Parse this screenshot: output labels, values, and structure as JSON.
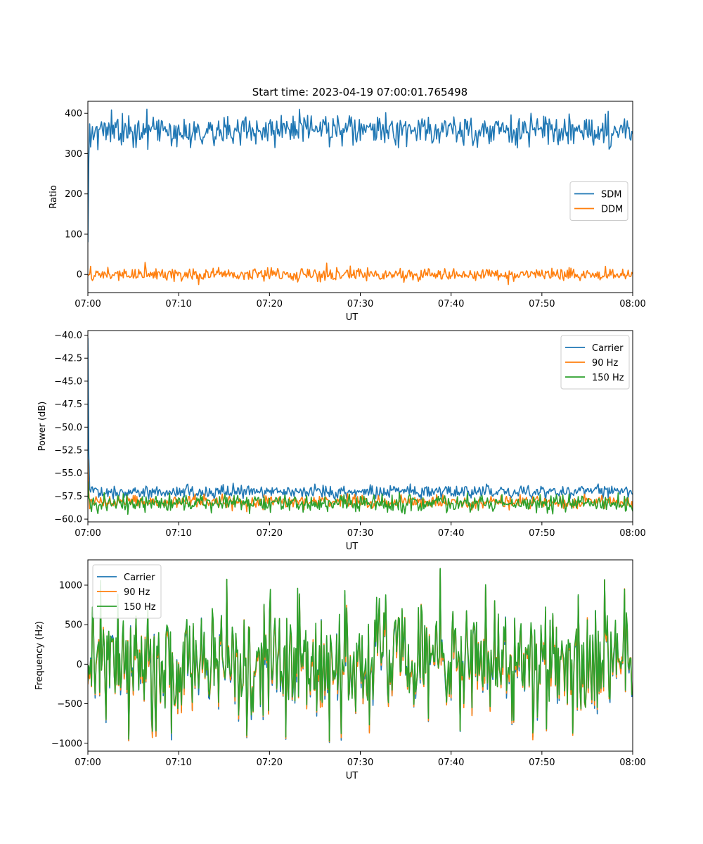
{
  "figure": {
    "title": "Start time: 2023-04-19 07:00:01.765498"
  },
  "chart_data": [
    {
      "type": "line",
      "xlabel": "UT",
      "ylabel": "Ratio",
      "xlim": [
        "07:00",
        "08:00"
      ],
      "ylim": [
        -45,
        430
      ],
      "x_ticks": [
        "07:00",
        "07:10",
        "07:20",
        "07:30",
        "07:40",
        "07:50",
        "08:00"
      ],
      "y_ticks": [
        0,
        100,
        200,
        300,
        400
      ],
      "legend_position": "center-right",
      "series": [
        {
          "name": "SDM",
          "color": "#1f77b4",
          "start": 80,
          "level": 357,
          "noise": 19,
          "peaks": [
            [
              23.3,
              410
            ],
            [
              21.3,
              395
            ],
            [
              26.2,
              392
            ],
            [
              20.6,
              315
            ],
            [
              57.5,
              315
            ]
          ]
        },
        {
          "name": "DDM",
          "color": "#ff7f0e",
          "start": -3,
          "level": 0,
          "noise": 8,
          "peaks": [
            [
              6.3,
              30
            ],
            [
              12.2,
              -25
            ],
            [
              46.3,
              -25
            ],
            [
              26.3,
              28
            ]
          ]
        }
      ]
    },
    {
      "type": "line",
      "xlabel": "UT",
      "ylabel": "Power (dB)",
      "xlim": [
        "07:00",
        "08:00"
      ],
      "ylim": [
        -60.3,
        -39.5
      ],
      "x_ticks": [
        "07:00",
        "07:10",
        "07:20",
        "07:30",
        "07:40",
        "07:50",
        "08:00"
      ],
      "y_ticks": [
        -40.0,
        -42.5,
        -45.0,
        -47.5,
        -50.0,
        -52.5,
        -55.0,
        -57.5,
        -60.0
      ],
      "legend_position": "top-right",
      "series": [
        {
          "name": "Carrier",
          "color": "#1f77b4",
          "start": -40.3,
          "level": -57.0,
          "noise": 0.35,
          "peaks": [
            [
              16.0,
              -56.1
            ],
            [
              11.0,
              -56.2
            ]
          ]
        },
        {
          "name": "90 Hz",
          "color": "#ff7f0e",
          "start": -53.5,
          "level": -58.1,
          "noise": 0.35,
          "peaks": [
            [
              17.5,
              -59.2
            ]
          ]
        },
        {
          "name": "150 Hz",
          "color": "#2ca02c",
          "start": -55.9,
          "level": -58.3,
          "noise": 0.45,
          "peaks": [
            [
              17.8,
              -59.4
            ],
            [
              39.5,
              -59.3
            ]
          ]
        }
      ]
    },
    {
      "type": "line",
      "xlabel": "UT",
      "ylabel": "Frequency (Hz)",
      "xlim": [
        "07:00",
        "08:00"
      ],
      "ylim": [
        -1100,
        1320
      ],
      "x_ticks": [
        "07:00",
        "07:10",
        "07:20",
        "07:30",
        "07:40",
        "07:50",
        "08:00"
      ],
      "y_ticks": [
        -1000,
        -500,
        0,
        500,
        1000
      ],
      "legend_position": "top-left",
      "series": [
        {
          "name": "Carrier",
          "color": "#1f77b4",
          "level": 20,
          "noise": 370,
          "peaks": [
            [
              38.8,
              1200
            ],
            [
              26.6,
              -990
            ],
            [
              21.8,
              -950
            ],
            [
              17.5,
              -930
            ],
            [
              15.3,
              1070
            ],
            [
              56.9,
              1065
            ]
          ]
        },
        {
          "name": "90 Hz",
          "color": "#ff7f0e",
          "level": 30,
          "noise": 370,
          "peaks": [
            [
              38.8,
              1200
            ],
            [
              26.6,
              -980
            ],
            [
              21.8,
              -940
            ],
            [
              17.5,
              -920
            ],
            [
              15.3,
              1070
            ],
            [
              56.9,
              1065
            ]
          ]
        },
        {
          "name": "150 Hz",
          "color": "#2ca02c",
          "level": 60,
          "noise": 370,
          "peaks": [
            [
              38.8,
              1210
            ],
            [
              26.6,
              -970
            ],
            [
              21.8,
              -920
            ],
            [
              17.5,
              -900
            ],
            [
              15.3,
              1075
            ],
            [
              56.9,
              1070
            ]
          ]
        }
      ]
    }
  ]
}
